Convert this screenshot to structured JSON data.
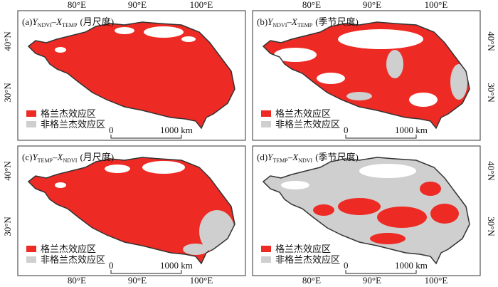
{
  "axes": {
    "top": [
      "80°E",
      "90°E",
      "100°E"
    ],
    "bottom": [
      "80°E",
      "90°E",
      "100°E"
    ],
    "left": [
      "40°N",
      "30°N",
      "40°N",
      "30°N"
    ],
    "right": [
      "40°N",
      "30°N",
      "40°N",
      "30°N"
    ]
  },
  "panels": [
    {
      "letter": "(a)",
      "y": "Y",
      "y_sub": "NDVI",
      "dash": "–",
      "x": "X",
      "x_sub": "TEMP",
      "scale": "(月尺度)",
      "legend": [
        "格兰杰效应区",
        "非格兰杰效应区"
      ],
      "scale_bar": [
        "0",
        "1000 km"
      ]
    },
    {
      "letter": "(b)",
      "y": "Y",
      "y_sub": "NDVI",
      "dash": "–",
      "x": "X",
      "x_sub": "TEMP",
      "scale": "(季节尺度)",
      "legend": [
        "格兰杰效应区",
        "非格兰杰效应区"
      ],
      "scale_bar": [
        "0",
        "1000 km"
      ]
    },
    {
      "letter": "(c)",
      "y": "Y",
      "y_sub": "TEMP",
      "dash": "–",
      "x": "X",
      "x_sub": "NDVI",
      "scale": "(月尺度)",
      "legend": [
        "格兰杰效应区",
        "非格兰杰效应区"
      ],
      "scale_bar": [
        "0",
        "1000 km"
      ]
    },
    {
      "letter": "(d)",
      "y": "Y",
      "y_sub": "TEMP",
      "dash": "–",
      "x": "X",
      "x_sub": "NDVI",
      "scale": "(季节尺度)",
      "legend": [
        "格兰杰效应区",
        "非格兰杰效应区"
      ],
      "scale_bar": [
        "0",
        "1000 km"
      ]
    }
  ]
}
